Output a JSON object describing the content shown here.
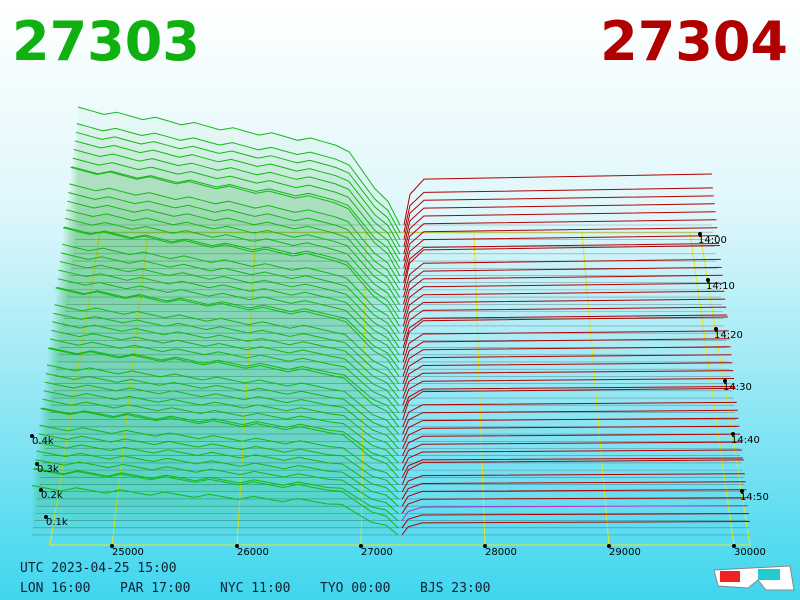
{
  "header": {
    "bid": "27303",
    "ask": "27304"
  },
  "axes": {
    "price_ticks": [
      "25000",
      "26000",
      "27000",
      "28000",
      "29000",
      "30000"
    ],
    "depth_ticks": [
      "0.4k",
      "0.3k",
      "0.2k",
      "0.1k"
    ],
    "time_ticks": [
      "14:00",
      "14:10",
      "14:20",
      "14:30",
      "14:40",
      "14:50"
    ]
  },
  "footer": {
    "utc": "UTC 2023-04-25 15:00",
    "cities": [
      "LON 16:00",
      "PAR 17:00",
      "NYC 11:00",
      "TYO 00:00",
      "BJS 23:00"
    ]
  }
}
